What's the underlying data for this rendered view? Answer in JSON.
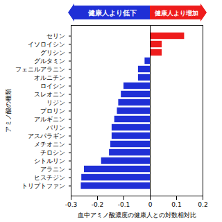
{
  "chart_data": {
    "type": "bar",
    "orientation": "horizontal",
    "annotations": [
      "健康人より低下",
      "健康人より増加"
    ],
    "x_label": "血中アミノ酸濃度の健康人との対数相対比",
    "y_label": "アミノ酸の種類",
    "categories": [
      "セリン",
      "イソロイシン",
      "グリシン",
      "グルタミン",
      "フェニルアラニン",
      "オルニチン",
      "ロイシン",
      "スレオニン",
      "リジン",
      "プロリン",
      "アルギニン",
      "バリン",
      "アスパラギン",
      "メチオニン",
      "チロシン",
      "シトルリン",
      "アラニン",
      "ヒスチジン",
      "トリプトファン"
    ],
    "values": [
      0.13,
      0.045,
      0.045,
      -0.02,
      -0.045,
      -0.045,
      -0.1,
      -0.11,
      -0.12,
      -0.125,
      -0.135,
      -0.145,
      -0.145,
      -0.15,
      -0.155,
      -0.185,
      -0.25,
      -0.26,
      -0.262
    ],
    "colors": [
      "#ee1c1c",
      "#ee1c1c",
      "#ee1c1c",
      "#1f2fd6",
      "#1f2fd6",
      "#1f2fd6",
      "#1f2fd6",
      "#1f2fd6",
      "#1f2fd6",
      "#1f2fd6",
      "#1f2fd6",
      "#1f2fd6",
      "#1f2fd6",
      "#1f2fd6",
      "#1f2fd6",
      "#1f2fd6",
      "#1f2fd6",
      "#1f2fd6",
      "#1f2fd6"
    ],
    "xlim": [
      -0.3,
      0.2
    ],
    "xticks": [
      -0.3,
      -0.2,
      -0.1,
      0,
      0.1,
      0.2
    ],
    "grid": false
  }
}
